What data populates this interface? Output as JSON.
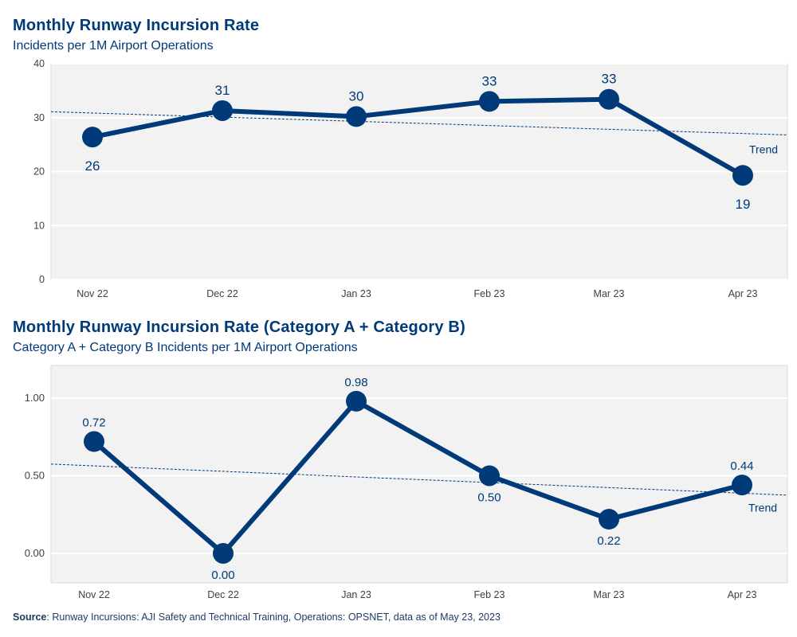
{
  "colors": {
    "line": "#003a78",
    "title": "#003a78",
    "plot_bg": "#f2f2f2",
    "grid": "#ffffff",
    "axis_text": "#404040"
  },
  "charts": [
    {
      "title": "Monthly Runway Incursion Rate",
      "subtitle": "Incidents per 1M Airport Operations"
    },
    {
      "title": "Monthly Runway Incursion Rate (Category A + Category B)",
      "subtitle": "Category A + Category B Incidents per 1M Airport Operations"
    }
  ],
  "source": {
    "label": "Source",
    "text": ": Runway Incursions: AJI Safety and Technical Training, Operations: OPSNET, data as of May 23, 2023"
  },
  "chart_data": [
    {
      "type": "line",
      "title": "Monthly Runway Incursion Rate",
      "subtitle": "Incidents per 1M Airport Operations",
      "categories": [
        "Nov 22",
        "Dec 22",
        "Jan 23",
        "Feb 23",
        "Mar 23",
        "Apr 23"
      ],
      "values": [
        26.4,
        31.3,
        30.2,
        33.0,
        33.4,
        19.3
      ],
      "data_labels": [
        "26",
        "31",
        "30",
        "33",
        "33",
        "19"
      ],
      "label_below": [
        true,
        false,
        false,
        false,
        false,
        true
      ],
      "ylim": [
        0,
        40
      ],
      "yticks": [
        0,
        10,
        20,
        30,
        40
      ],
      "ytick_labels": [
        "0",
        "10",
        "20",
        "30",
        "40"
      ],
      "trend": {
        "label": "Trend",
        "start": 31.1,
        "end": 26.8
      },
      "grid": true
    },
    {
      "type": "line",
      "title": "Monthly Runway Incursion Rate (Category A + Category B)",
      "subtitle": "Category A + Category B Incidents per 1M Airport Operations",
      "categories": [
        "Nov 22",
        "Dec 22",
        "Jan 23",
        "Feb 23",
        "Mar 23",
        "Apr 23"
      ],
      "values": [
        0.72,
        0.0,
        0.98,
        0.5,
        0.22,
        0.44
      ],
      "data_labels": [
        "0.72",
        "0.00",
        "0.98",
        "0.50",
        "0.22",
        "0.44"
      ],
      "label_below": [
        false,
        true,
        false,
        true,
        true,
        false
      ],
      "ylim": [
        -0.19,
        1.21
      ],
      "yticks": [
        0.0,
        0.5,
        1.0
      ],
      "ytick_labels": [
        "0.00",
        "0.50",
        "1.00"
      ],
      "trend": {
        "label": "Trend",
        "start": 0.575,
        "end": 0.375
      },
      "grid": true
    }
  ]
}
